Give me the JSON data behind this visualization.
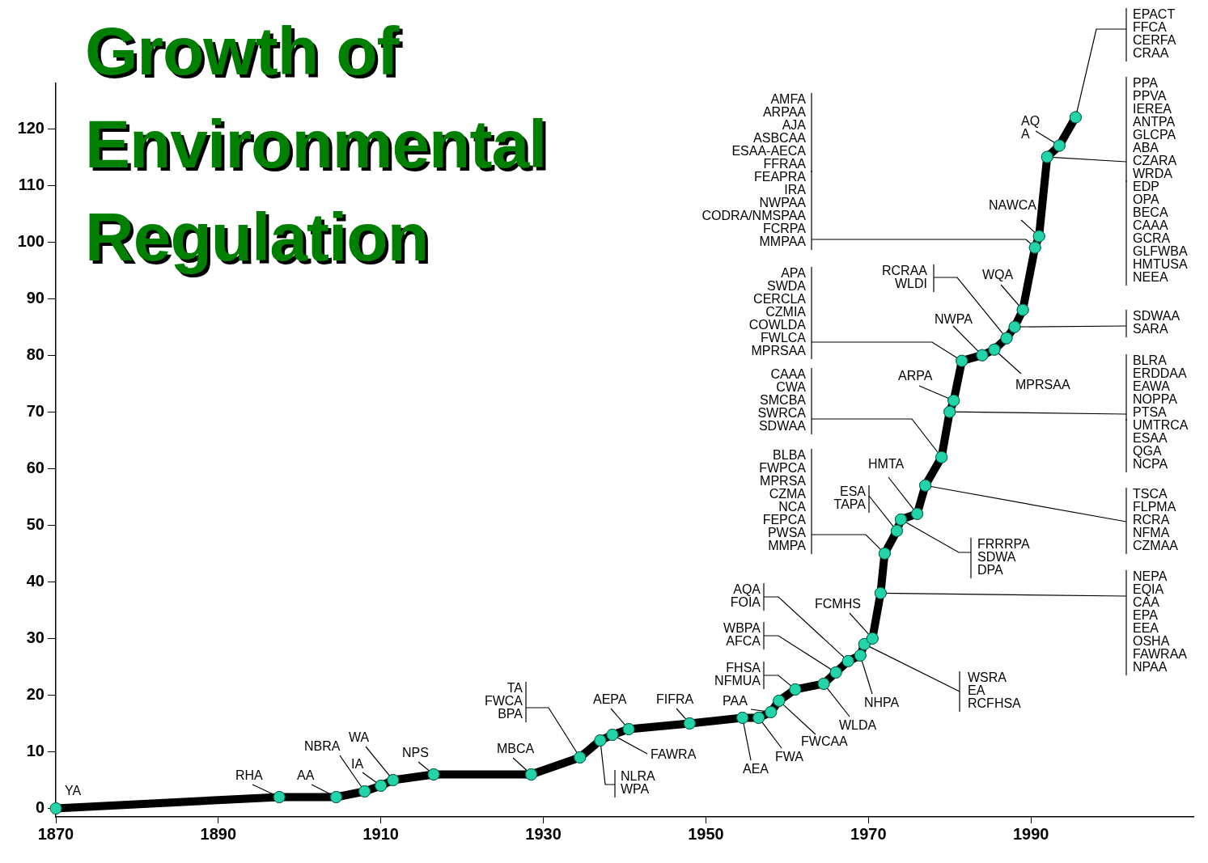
{
  "chart_data": {
    "type": "line",
    "title": "Growth of Environmental Regulation",
    "x": [
      1870,
      1897.5,
      1904.5,
      1908,
      1910,
      1911.5,
      1916.5,
      1928.5,
      1934.5,
      1937,
      1938.5,
      1940.5,
      1948,
      1954.5,
      1956.5,
      1958,
      1959,
      1961,
      1964.5,
      1966,
      1967.5,
      1969,
      1969.5,
      1970.5,
      1971.5,
      1972,
      1973.5,
      1974,
      1976,
      1977,
      1979,
      1980,
      1980.5,
      1981.5,
      1984,
      1985.5,
      1987,
      1988,
      1989,
      1990.5,
      1991,
      1992,
      1993.5,
      1995.5
    ],
    "series": [
      {
        "color": "#000000",
        "colors": [
          "#22d4a8",
          "#22d4a8",
          "#22d4a8",
          "#22d4a8",
          "#22d4a8",
          "#22d4a8",
          "#22d4a8",
          "#22d4a8",
          "#22d4a8",
          "#22d4a8",
          "#22d4a8",
          "#22d4a8",
          "#22d4a8",
          "#22d4a8",
          "#22d4a8",
          "#22d4a8",
          "#22d4a8",
          "#22d4a8",
          "#22d4a8",
          "#22d4a8",
          "#22d4a8",
          "#22d4a8",
          "#22d4a8",
          "#22d4a8",
          "#22d4a8",
          "#22d4a8",
          "#22d4a8",
          "#22d4a8",
          "#22d4a8",
          "#22d4a8",
          "#22d4a8",
          "#22d4a8",
          "#22d4a8",
          "#22d4a8",
          "#22d4a8",
          "#22d4a8",
          "#22d4a8",
          "#22d4a8",
          "#22d4a8",
          "#22d4a8",
          "#22d4a8",
          "#22d4a8",
          "#22d4a8",
          "#22d4a8"
        ],
        "values": [
          0,
          2,
          2,
          3,
          4,
          5,
          6,
          6,
          9,
          12,
          13,
          14,
          15,
          16,
          16,
          17,
          19,
          21,
          22,
          24,
          26,
          27,
          29,
          30,
          38,
          45,
          49,
          51,
          52,
          57,
          62,
          70,
          72,
          79,
          80,
          81,
          83,
          85,
          88,
          99,
          101,
          115,
          117,
          122
        ]
      }
    ],
    "xlim": [
      1870,
      2010
    ],
    "xticks": [
      1870,
      1890,
      1910,
      1930,
      1950,
      1970,
      1990
    ],
    "ylim": [
      -1.5,
      128
    ],
    "yticks": [
      0,
      10,
      20,
      30,
      40,
      50,
      60,
      70,
      80,
      90,
      100,
      110,
      120
    ],
    "grid": false,
    "marker": "circle",
    "line_style": "solid",
    "annotations": [
      {
        "text": "YA",
        "x": 1870,
        "y": 0
      },
      {
        "text": "RHA",
        "x": 1897.5,
        "y": 2
      },
      {
        "text": "AA",
        "x": 1904.5,
        "y": 2
      },
      {
        "text": "NBRA",
        "x": 1908,
        "y": 3
      },
      {
        "text": "IA",
        "x": 1910,
        "y": 4
      },
      {
        "text": "WA",
        "x": 1911.5,
        "y": 5
      },
      {
        "text": "NPS",
        "x": 1916.5,
        "y": 6
      },
      {
        "text": "MBCA",
        "x": 1928.5,
        "y": 6
      },
      {
        "text": "TA\nFWCA\nBPA",
        "x": 1934.5,
        "y": 9
      },
      {
        "text": "NLRA\nWPA",
        "x": 1937,
        "y": 12
      },
      {
        "text": "FAWRA",
        "x": 1938.5,
        "y": 13
      },
      {
        "text": "AEPA",
        "x": 1940.5,
        "y": 14
      },
      {
        "text": "FIFRA",
        "x": 1948,
        "y": 15
      },
      {
        "text": "AEA",
        "x": 1954.5,
        "y": 16
      },
      {
        "text": "FWA",
        "x": 1956.5,
        "y": 16
      },
      {
        "text": "PAA",
        "x": 1958,
        "y": 17
      },
      {
        "text": "FWCAA",
        "x": 1959,
        "y": 19
      },
      {
        "text": "FHSA\nNFMUA",
        "x": 1961,
        "y": 21
      },
      {
        "text": "WLDA",
        "x": 1964.5,
        "y": 22
      },
      {
        "text": "WBPA\nAFCA",
        "x": 1966,
        "y": 24
      },
      {
        "text": "AQA\nFOIA",
        "x": 1967.5,
        "y": 26
      },
      {
        "text": "NHPA",
        "x": 1969,
        "y": 27
      },
      {
        "text": "WSRA\nEA\nRCFHSA",
        "x": 1969.5,
        "y": 29
      },
      {
        "text": "FCMHS",
        "x": 1970.5,
        "y": 30
      },
      {
        "text": "NEPA\nEQIA\nCAA\nEPA\nEEA\nOSHA\nFAWRAA\nNPAA",
        "x": 1971.5,
        "y": 38
      },
      {
        "text": "BLBA\nFWPCA\nMPRSA\nCZMA\nNCA\nFEPCA\nPWSA\nMMPA",
        "x": 1972,
        "y": 45
      },
      {
        "text": "ESA\nTAPA",
        "x": 1973.5,
        "y": 49
      },
      {
        "text": "FRRRPA\nSDWA\nDPA",
        "x": 1974,
        "y": 51
      },
      {
        "text": "HMTA",
        "x": 1976,
        "y": 52
      },
      {
        "text": "TSCA\nFLPMA\nRCRA\nNFMA\nCZMAA",
        "x": 1977,
        "y": 57
      },
      {
        "text": "CAAA\nCWA\nSMCBA\nSWRCA\nSDWAA",
        "x": 1979,
        "y": 62
      },
      {
        "text": "BLRA\nERDDAA\nEAWA\nNOPPA\nPTSA",
        "x": 1980,
        "y": 70
      },
      {
        "text": "UMTRCA\nESAA\nQGA\nNCPA",
        "x": 1980,
        "y": 70
      },
      {
        "text": "ARPA",
        "x": 1980.5,
        "y": 72
      },
      {
        "text": "APA\nSWDA\nCERCLA\nCZMIA\nCOWLDA\nFWLCA\nMPRSAA",
        "x": 1981.5,
        "y": 79
      },
      {
        "text": "NWPA",
        "x": 1984,
        "y": 80
      },
      {
        "text": "MPRSAA",
        "x": 1985.5,
        "y": 81
      },
      {
        "text": "RCRAA\nWLDI",
        "x": 1987,
        "y": 83
      },
      {
        "text": "SDWAA\nSARA",
        "x": 1988,
        "y": 85
      },
      {
        "text": "WQA",
        "x": 1989,
        "y": 88
      },
      "AMFA\nARPAA\nAJA\nASBCAA\nESAA-AECA\nFFRAA",
      {
        "text": "FEAPRA\nIRA\nNWPAA\nCODRA/NMSPAA\nFCRPA\nMMPAA",
        "x": 1990.5,
        "y": 99
      },
      {
        "text": "NAWCA",
        "x": 1991,
        "y": 101
      },
      {
        "text": "PPA\nPPVA\nIEREA\nANTPA\nGLCPA\nABA\nCZARA\nWRDA",
        "x": 1992,
        "y": 115
      },
      "EDP\nOPA\nBECA\nCAAA\nGCRA\nGLFWBA\nHMTUSA\nNEEA",
      {
        "text": "AQ\nA",
        "x": 1993.5,
        "y": 117
      },
      {
        "text": "EPACT\nFFCA\nCERFA\nCRAA",
        "x": 1995.5,
        "y": 122
      }
    ]
  }
}
